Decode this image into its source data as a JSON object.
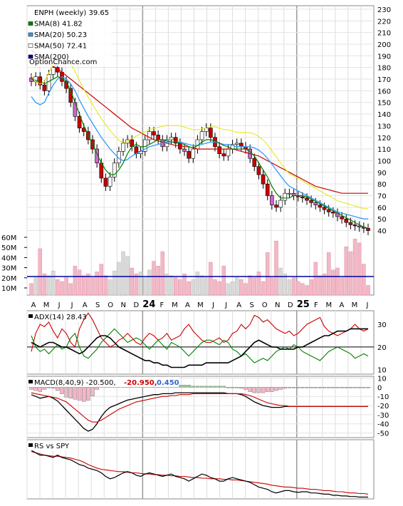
{
  "chart_data": {
    "type": "line",
    "ticker": "ENPH",
    "x_labels": [
      "A",
      "M",
      "J",
      "J",
      "A",
      "S",
      "O",
      "N",
      "D",
      "24",
      "F",
      "M",
      "A",
      "M",
      "J",
      "J",
      "A",
      "S",
      "O",
      "N",
      "D",
      "25",
      "F",
      "M",
      "A",
      "M",
      "J"
    ],
    "price_panel": {
      "legend": [
        {
          "name": "ENPH (weekly) 39.65",
          "color": "#000000",
          "marker": "none"
        },
        {
          "name": "SMA(8) 41.82",
          "color": "#008000",
          "marker": "box"
        },
        {
          "name": "SMA(20) 50.23",
          "color": "#3399ff",
          "marker": "box"
        },
        {
          "name": "SMA(50) 72.41",
          "color": "#ffffff",
          "marker": "box"
        },
        {
          "name": "SMA(200)",
          "color": "#000099",
          "marker": "box"
        }
      ],
      "watermark": "OptionChance.com",
      "y_ticks": [
        40,
        50,
        60,
        70,
        80,
        90,
        100,
        110,
        120,
        130,
        140,
        150,
        160,
        170,
        180,
        190,
        200,
        210,
        220,
        230
      ],
      "ylim": [
        33,
        233
      ],
      "volume_ticks": [
        "60M",
        "50M",
        "40M",
        "30M",
        "20M",
        "10M"
      ],
      "close": [
        168,
        172,
        165,
        160,
        174,
        180,
        176,
        168,
        162,
        150,
        138,
        128,
        125,
        118,
        110,
        98,
        85,
        78,
        86,
        98,
        108,
        115,
        118,
        112,
        106,
        108,
        118,
        125,
        122,
        118,
        112,
        118,
        120,
        115,
        110,
        108,
        102,
        110,
        118,
        125,
        128,
        120,
        112,
        106,
        104,
        110,
        114,
        115,
        112,
        110,
        102,
        95,
        88,
        80,
        70,
        62,
        60,
        66,
        72,
        72,
        70,
        69,
        68,
        66,
        64,
        62,
        60,
        58,
        56,
        55,
        52,
        50,
        47,
        45,
        44,
        43,
        42,
        40
      ],
      "sma8": [
        170,
        169,
        168,
        166,
        168,
        170,
        172,
        171,
        168,
        160,
        150,
        140,
        130,
        122,
        114,
        106,
        98,
        92,
        88,
        88,
        92,
        98,
        106,
        112,
        114,
        112,
        112,
        114,
        116,
        118,
        118,
        117,
        116,
        116,
        115,
        114,
        112,
        111,
        113,
        116,
        118,
        118,
        117,
        115,
        113,
        112,
        110,
        110,
        110,
        110,
        108,
        104,
        98,
        92,
        86,
        78,
        72,
        68,
        68,
        68,
        70,
        70,
        70,
        69,
        67,
        65,
        63,
        61,
        59,
        57,
        55,
        53,
        51,
        49,
        47,
        45,
        43,
        42
      ],
      "sma20": [
        155,
        150,
        148,
        150,
        158,
        165,
        170,
        172,
        170,
        166,
        160,
        152,
        145,
        138,
        132,
        126,
        120,
        115,
        110,
        106,
        102,
        100,
        101,
        104,
        106,
        108,
        110,
        112,
        113,
        114,
        115,
        116,
        116,
        116,
        116,
        115,
        114,
        113,
        113,
        114,
        115,
        116,
        116,
        115,
        114,
        114,
        113,
        112,
        112,
        112,
        112,
        111,
        109,
        106,
        102,
        97,
        92,
        87,
        82,
        78,
        76,
        74,
        72,
        70,
        68,
        66,
        64,
        62,
        60,
        58,
        56,
        55,
        54,
        53,
        52,
        51,
        50,
        50
      ],
      "sma50": [
        195,
        192,
        189,
        186,
        183,
        181,
        179,
        176,
        173,
        170,
        167,
        164,
        161,
        158,
        155,
        152,
        149,
        146,
        143,
        140,
        137,
        134,
        131,
        128,
        126,
        124,
        122,
        120,
        118,
        117,
        116,
        115,
        114,
        113,
        113,
        112,
        112,
        111,
        110,
        110,
        110,
        110,
        110,
        110,
        110,
        110,
        110,
        109,
        108,
        107,
        106,
        105,
        104,
        102,
        100,
        98,
        96,
        94,
        92,
        90,
        88,
        86,
        84,
        82,
        80,
        78,
        77,
        76,
        75,
        74,
        73,
        72,
        72,
        72,
        72,
        72,
        72,
        72
      ],
      "sma200": [
        25,
        25,
        25,
        25,
        25,
        25,
        25,
        25,
        25,
        25,
        25,
        25,
        25,
        25,
        25,
        25,
        25,
        25,
        25,
        25,
        25,
        25,
        25,
        25,
        25,
        25,
        25,
        25,
        25,
        25,
        25,
        25,
        25,
        25,
        25,
        25,
        25,
        25,
        25,
        25,
        25,
        25,
        25,
        25,
        25,
        25,
        25,
        25,
        25,
        25,
        25,
        25,
        25,
        25,
        25,
        25,
        25,
        25,
        25,
        25,
        25,
        25,
        25,
        25,
        25,
        25,
        25,
        25,
        25,
        25,
        25,
        25,
        25,
        25,
        25,
        25,
        25,
        25
      ]
    },
    "adx_panel": {
      "label": "ADX(14) 28.43",
      "y_ticks": [
        10,
        20,
        30
      ],
      "ylim": [
        8,
        36
      ]
    },
    "macd_panel": {
      "label_prefix": "MACD(8,40,9) -20.500,",
      "label_signal": "-20.950,",
      "label_hist": "0.450",
      "signal_color": "#cc0000",
      "hist_color": "#3366cc",
      "y_ticks": [
        10,
        0,
        -10,
        -20,
        -30,
        -40,
        -50
      ],
      "ylim": [
        -55,
        12
      ]
    },
    "rs_panel": {
      "label": "RS vs SPY"
    }
  }
}
